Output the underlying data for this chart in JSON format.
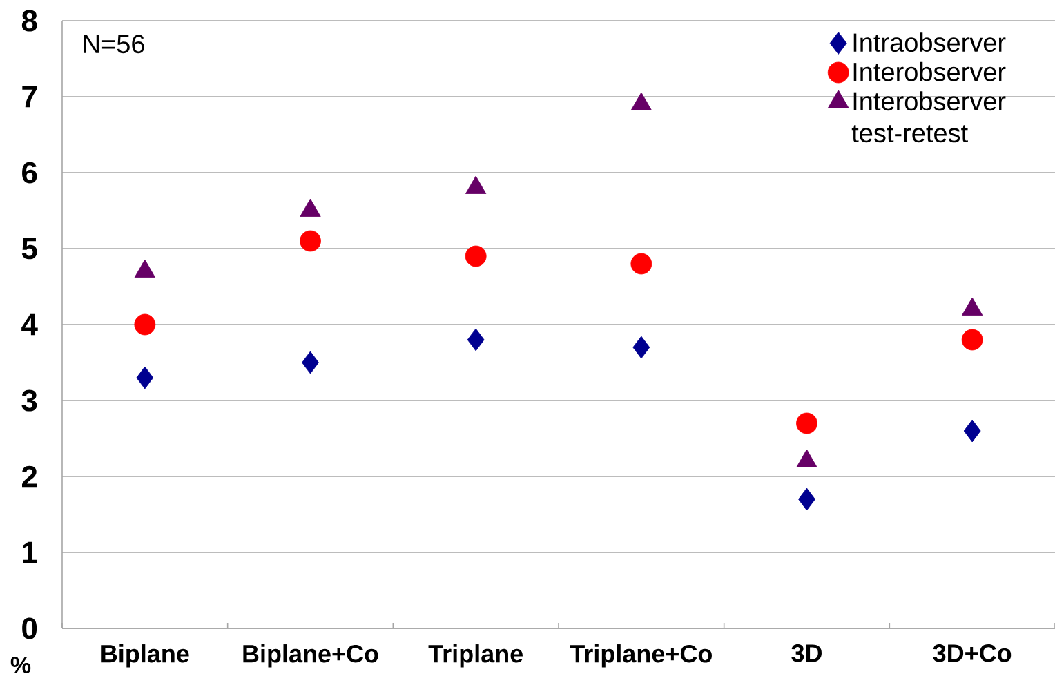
{
  "chart_data": {
    "type": "scatter",
    "ylabel": "%",
    "annotations": [
      "N=56"
    ],
    "categories": [
      "Biplane",
      "Biplane+Co",
      "Triplane",
      "Triplane+Co",
      "3D",
      "3D+Co"
    ],
    "series": [
      {
        "name": "Intraobserver",
        "color": "#000090",
        "marker": "diamond",
        "values": [
          3.3,
          3.5,
          3.8,
          3.7,
          1.7,
          2.6
        ]
      },
      {
        "name": "Interobserver",
        "color": "#ff0000",
        "marker": "circle",
        "values": [
          4.0,
          5.1,
          4.9,
          4.8,
          2.7,
          3.8
        ]
      },
      {
        "name": "Interobserver test-retest",
        "color": "#660066",
        "marker": "triangle",
        "values": [
          4.7,
          5.5,
          5.8,
          6.9,
          2.2,
          4.2
        ]
      }
    ],
    "ylim": [
      0,
      8
    ],
    "yticks": [
      0,
      1,
      2,
      3,
      4,
      5,
      6,
      7,
      8
    ],
    "grid": "y",
    "legend": "top right"
  }
}
